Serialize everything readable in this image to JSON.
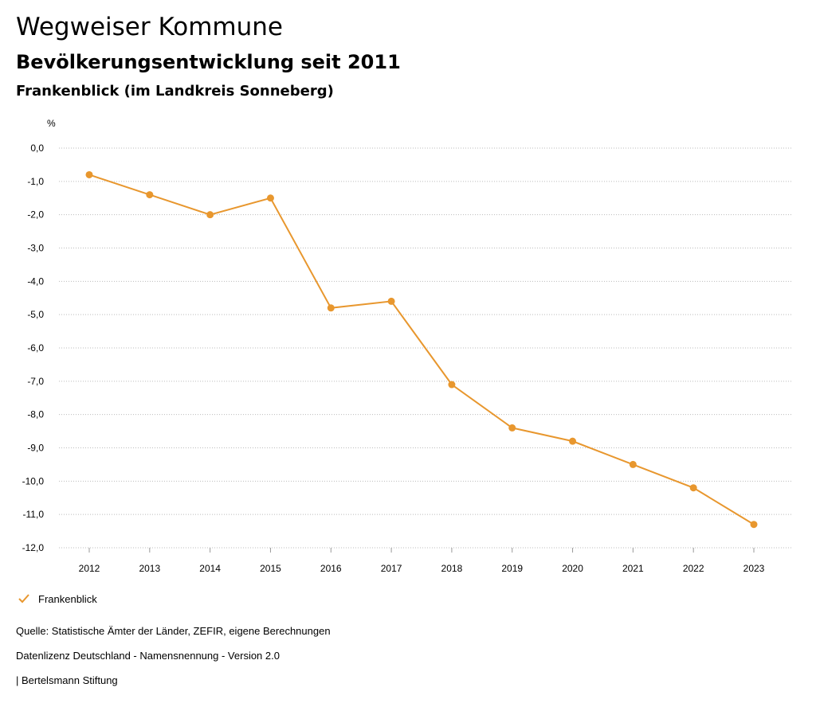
{
  "header": {
    "title": "Wegweiser Kommune",
    "subtitle": "Bevölkerungsentwicklung seit 2011",
    "region": "Frankenblick (im Landkreis Sonneberg)"
  },
  "chart_data": {
    "type": "line",
    "unit_label": "%",
    "x": [
      "2012",
      "2013",
      "2014",
      "2015",
      "2016",
      "2017",
      "2018",
      "2019",
      "2020",
      "2021",
      "2022",
      "2023"
    ],
    "series": [
      {
        "name": "Frankenblick",
        "color": "#e8972e",
        "values": [
          -0.8,
          -1.4,
          -2.0,
          -1.5,
          -4.8,
          -4.6,
          -7.1,
          -8.4,
          -8.8,
          -9.5,
          -10.2,
          -11.3
        ]
      }
    ],
    "ylim": [
      -12,
      0
    ],
    "yticks": [
      "0,0",
      "-1,0",
      "-2,0",
      "-3,0",
      "-4,0",
      "-5,0",
      "-6,0",
      "-7,0",
      "-8,0",
      "-9,0",
      "-10,0",
      "-11,0",
      "-12,0"
    ],
    "grid": true,
    "legend_position": "bottom-left"
  },
  "legend": {
    "label": "Frankenblick"
  },
  "footer": {
    "source": "Quelle: Statistische Ämter der Länder, ZEFIR, eigene Berechnungen",
    "license": "Datenlizenz Deutschland - Namensnennung - Version 2.0",
    "org": "| Bertelsmann Stiftung"
  },
  "colors": {
    "series": "#e8972e",
    "grid": "#bbbbbb",
    "axis": "#999999"
  }
}
